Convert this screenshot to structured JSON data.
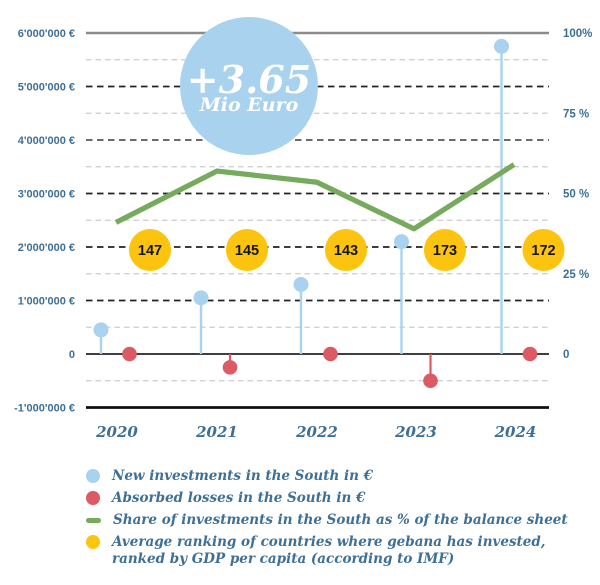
{
  "chart_data": {
    "type": "combo",
    "title": "",
    "categories": [
      "2020",
      "2021",
      "2022",
      "2023",
      "2024"
    ],
    "left_axis": {
      "ticks": [
        "6'000'000 €",
        "5'000'000 €",
        "4'000'000 €",
        "3'000'000 €",
        "2'000'000 €",
        "1'000'000 €",
        "0",
        "-1'000'000 €"
      ],
      "tick_values_eur": [
        6000000,
        5000000,
        4000000,
        3000000,
        2000000,
        1000000,
        0,
        -1000000
      ],
      "range_eur": [
        -1000000,
        6000000
      ],
      "grid": "dashed, light dashed at half-million steps"
    },
    "right_axis": {
      "ticks": [
        "100%",
        "75 %",
        "50 %",
        "25 %",
        "0"
      ],
      "tick_values_pct": [
        100,
        75,
        50,
        25,
        0
      ],
      "range_pct": [
        0,
        100
      ]
    },
    "series": [
      {
        "name": "New investments in the South in €",
        "type": "lollipop",
        "color": "#a8d2ee",
        "unit": "EUR",
        "values": [
          450000,
          1050000,
          1300000,
          2100000,
          5750000
        ]
      },
      {
        "name": "Absorbed losses in the South in €",
        "type": "lollipop",
        "color": "#dc5a64",
        "unit": "EUR",
        "values": [
          0,
          -250000,
          0,
          -500000,
          0
        ]
      },
      {
        "name": "Share of investments in the South as % of the balance sheet",
        "type": "line",
        "color": "#76aa5c",
        "unit": "%",
        "values": [
          41,
          57,
          53.5,
          39,
          59
        ]
      },
      {
        "name": "Average ranking of countries where gebana has invested, ranked by GDP per capita (according to IMF)",
        "type": "badge-circle",
        "color": "#fcc40e",
        "unit": "rank",
        "values": [
          147,
          145,
          143,
          173,
          172
        ]
      }
    ],
    "annotation": {
      "line1": "+3.65",
      "line2": "Mio Euro",
      "bubble_color": "#a8d2ee",
      "text_color": "#ffffff"
    },
    "legend_position": "bottom-left"
  },
  "legend": {
    "items": [
      {
        "label": "New investments in the South in  €",
        "color": "#a8d2ee",
        "shape": "circle"
      },
      {
        "label": "Absorbed losses in the South in €",
        "color": "#dc5a64",
        "shape": "circle"
      },
      {
        "label": "Share of investments in the South as % of  the balance sheet",
        "color": "#76aa5c",
        "shape": "dash"
      },
      {
        "label": "Average ranking of countries where gebana has invested, ranked by GDP per capita (according to IMF)",
        "color": "#fcc40e",
        "shape": "circle"
      }
    ]
  },
  "colors": {
    "axis_text": "#3e6f96",
    "grid_major": "#222222",
    "grid_major_alt": "#6b6b6b",
    "grid_minor": "#cccccc",
    "top_rule": "#8c8c8c",
    "zero_rule": "#3f3f3f",
    "bottom_rule": "#111111",
    "badge_text": "#151515"
  }
}
